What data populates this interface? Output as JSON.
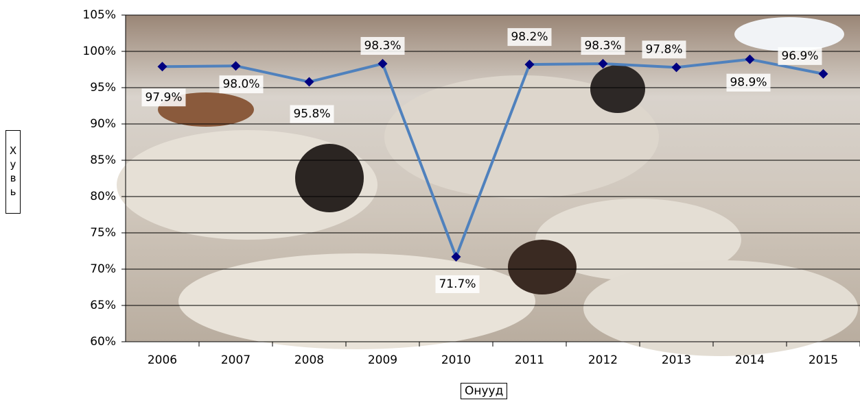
{
  "chart_data": {
    "type": "line",
    "x_label": "Онууд",
    "y_label": "Хувь",
    "categories": [
      "2006",
      "2007",
      "2008",
      "2009",
      "2010",
      "2011",
      "2012",
      "2013",
      "2014",
      "2015"
    ],
    "series": [
      {
        "color": "#4f81bd",
        "marker_color": "#000080",
        "values": [
          97.9,
          98.0,
          95.8,
          98.3,
          71.7,
          98.2,
          98.3,
          97.8,
          98.9,
          96.9
        ],
        "value_labels": [
          "97.9%",
          "98.0%",
          "95.8%",
          "98.3%",
          "71.7%",
          "98.2%",
          "98.3%",
          "97.8%",
          "98.9%",
          "96.9%"
        ]
      }
    ],
    "ylim": [
      60,
      105
    ],
    "yticks": [
      {
        "value": 60,
        "label": "60%"
      },
      {
        "value": 65,
        "label": "65%"
      },
      {
        "value": 70,
        "label": "70%"
      },
      {
        "value": 75,
        "label": "75%"
      },
      {
        "value": 80,
        "label": "80%"
      },
      {
        "value": 85,
        "label": "85%"
      },
      {
        "value": 90,
        "label": "90%"
      },
      {
        "value": 95,
        "label": "95%"
      },
      {
        "value": 100,
        "label": "100%"
      },
      {
        "value": 105,
        "label": "105%"
      }
    ],
    "grid": true
  }
}
